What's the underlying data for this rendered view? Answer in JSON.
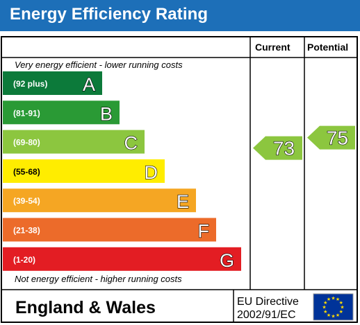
{
  "title": "Energy Efficiency Rating",
  "columns": {
    "current": "Current",
    "potential": "Potential"
  },
  "top_caption": "Very energy efficient - lower running costs",
  "bottom_caption": "Not energy efficient - higher running costs",
  "bands": [
    {
      "range": "(92 plus)",
      "letter": "A",
      "color": "#0c7a3a"
    },
    {
      "range": "(81-91)",
      "letter": "B",
      "color": "#2a9a35"
    },
    {
      "range": "(69-80)",
      "letter": "C",
      "color": "#8cc63f"
    },
    {
      "range": "(55-68)",
      "letter": "D",
      "color": "#ffed00"
    },
    {
      "range": "(39-54)",
      "letter": "E",
      "color": "#f5a623"
    },
    {
      "range": "(21-38)",
      "letter": "F",
      "color": "#ec6b2a"
    },
    {
      "range": "(1-20)",
      "letter": "G",
      "color": "#e31d23"
    }
  ],
  "ratings": {
    "current": {
      "value": "73",
      "band": "C",
      "color": "#8cc63f"
    },
    "potential": {
      "value": "75",
      "band": "C",
      "color": "#8cc63f"
    }
  },
  "footer": {
    "region": "England & Wales",
    "directive_line1": "EU Directive",
    "directive_line2": "2002/91/EC",
    "flag_icon": "eu-flag-icon",
    "flag_color": "#003399",
    "star_color": "#ffdd00"
  }
}
